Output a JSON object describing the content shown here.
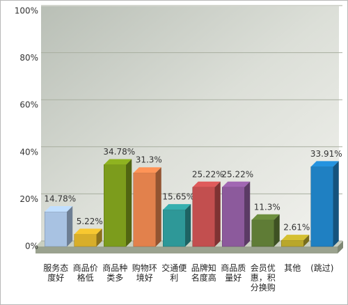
{
  "chart_data": {
    "type": "bar3d",
    "categories": [
      "服务态度好",
      "商品价格低",
      "商品种类多",
      "购物环境好",
      "交通便利",
      "品牌知名度高",
      "商品质量好",
      "会员优惠，积分换购",
      "其他",
      "(跳过)"
    ],
    "values": [
      14.78,
      5.22,
      34.78,
      31.3,
      15.65,
      25.22,
      25.22,
      11.3,
      2.61,
      33.91
    ],
    "value_labels": [
      "14.78%",
      "5.22%",
      "34.78%",
      "31.3%",
      "15.65%",
      "25.22%",
      "25.22%",
      "11.3%",
      "2.61%",
      "33.91%"
    ],
    "colors": [
      "#a8c2e2",
      "#d8ae2a",
      "#7c9c1c",
      "#e2814c",
      "#2e9898",
      "#c24f4f",
      "#8c5a9c",
      "#5f7c36",
      "#b9a72b",
      "#1f80c2"
    ],
    "ylim": [
      0,
      100
    ],
    "yticks": [
      {
        "value": 0,
        "label": "0%"
      },
      {
        "value": 20,
        "label": "20%"
      },
      {
        "value": 40,
        "label": "40%"
      },
      {
        "value": 60,
        "label": "60%"
      },
      {
        "value": 80,
        "label": "80%"
      },
      {
        "value": 100,
        "label": "100%"
      }
    ],
    "grid": true
  }
}
